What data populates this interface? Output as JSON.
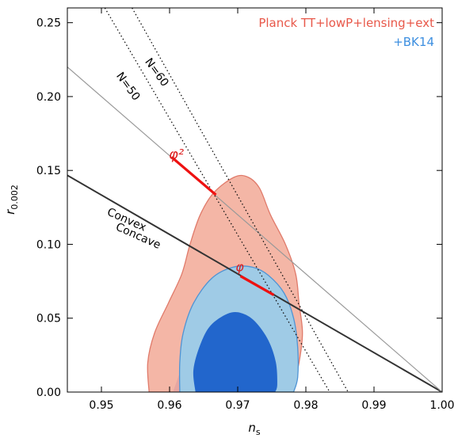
{
  "chart_data": {
    "type": "scatter",
    "xlabel": "n",
    "xlabel_sub": "s",
    "ylabel": "r",
    "ylabel_sub": "0.002",
    "xlim": [
      0.945,
      1.0
    ],
    "ylim": [
      0.0,
      0.26
    ],
    "x_ticks": [
      0.95,
      0.96,
      0.97,
      0.98,
      0.99,
      1.0
    ],
    "x_tick_labels": [
      "0.95",
      "0.96",
      "0.97",
      "0.98",
      "0.99",
      "1.00"
    ],
    "y_ticks": [
      0.0,
      0.05,
      0.1,
      0.15,
      0.2,
      0.25
    ],
    "y_tick_labels": [
      "0.00",
      "0.05",
      "0.10",
      "0.15",
      "0.20",
      "0.25"
    ],
    "grid": false,
    "legend_placement": "top-right",
    "legend": [
      {
        "label": "Planck TT+lowP+lensing+ext",
        "color": "#e8584a"
      },
      {
        "label": "+BK14",
        "color": "#3d8fe0"
      }
    ],
    "colors": {
      "planck_outer": "#f4b6a6",
      "planck_outer_edge": "#e07a6a",
      "planck_inner": "#e6a6a2",
      "bk_outer": "#9fcbe6",
      "bk_outer_edge": "#4f94d4",
      "bk_inner": "#2266cc",
      "model_line": "#ee1111",
      "convex_line": "#333333",
      "gray_line": "#999999"
    },
    "lines": [
      {
        "name": "convex-concave-boundary",
        "style": "solid",
        "color": "#333333",
        "points": [
          [
            0.945,
            0.1467
          ],
          [
            1.0,
            0.0
          ]
        ]
      },
      {
        "name": "phi2-line",
        "style": "solid",
        "color": "#999999",
        "points": [
          [
            0.945,
            0.22
          ],
          [
            1.0,
            0.0
          ]
        ]
      },
      {
        "name": "n50-line",
        "style": "dotted",
        "color": "#111111",
        "points": [
          [
            0.9505,
            0.26
          ],
          [
            0.9835,
            0.0
          ]
        ]
      },
      {
        "name": "n60-line",
        "style": "dotted",
        "color": "#111111",
        "points": [
          [
            0.9545,
            0.26
          ],
          [
            0.9862,
            0.0
          ]
        ]
      }
    ],
    "model_segments": [
      {
        "name": "phi2-segment",
        "points": [
          [
            0.9603,
            0.159
          ],
          [
            0.9668,
            0.1335
          ]
        ]
      },
      {
        "name": "phi-segment",
        "points": [
          [
            0.9704,
            0.0785
          ],
          [
            0.9753,
            0.0657
          ]
        ]
      }
    ],
    "contours": [
      {
        "name": "planck-95",
        "fill": "#f4b6a6",
        "edge": "#e07a6a",
        "points": [
          [
            0.957,
            0.0
          ],
          [
            0.9568,
            0.02
          ],
          [
            0.9578,
            0.04
          ],
          [
            0.9598,
            0.06
          ],
          [
            0.9618,
            0.08
          ],
          [
            0.963,
            0.1
          ],
          [
            0.9645,
            0.12
          ],
          [
            0.9665,
            0.135
          ],
          [
            0.9695,
            0.1455
          ],
          [
            0.9715,
            0.1455
          ],
          [
            0.9732,
            0.138
          ],
          [
            0.9748,
            0.12
          ],
          [
            0.977,
            0.1
          ],
          [
            0.9785,
            0.08
          ],
          [
            0.979,
            0.06
          ],
          [
            0.9795,
            0.04
          ],
          [
            0.979,
            0.02
          ],
          [
            0.978,
            0.0
          ]
        ]
      },
      {
        "name": "planck-68",
        "fill": "#e6a6a2",
        "edge": null,
        "points": [
          [
            0.9605,
            0.0
          ],
          [
            0.9628,
            0.03
          ],
          [
            0.965,
            0.058
          ],
          [
            0.9675,
            0.075
          ],
          [
            0.9705,
            0.08
          ],
          [
            0.9722,
            0.076
          ],
          [
            0.9735,
            0.06
          ],
          [
            0.974,
            0.03
          ],
          [
            0.9738,
            0.0
          ]
        ]
      },
      {
        "name": "bk14-95",
        "fill": "#9fcbe6",
        "edge": "#4f94d4",
        "points": [
          [
            0.9615,
            0.0
          ],
          [
            0.9615,
            0.02
          ],
          [
            0.962,
            0.04
          ],
          [
            0.9635,
            0.06
          ],
          [
            0.9662,
            0.077
          ],
          [
            0.9693,
            0.0845
          ],
          [
            0.9722,
            0.0845
          ],
          [
            0.9745,
            0.079
          ],
          [
            0.9768,
            0.067
          ],
          [
            0.9782,
            0.05
          ],
          [
            0.9788,
            0.03
          ],
          [
            0.9788,
            0.01
          ],
          [
            0.9782,
            0.0
          ]
        ]
      },
      {
        "name": "bk14-68",
        "fill": "#2266cc",
        "edge": null,
        "points": [
          [
            0.9638,
            0.0
          ],
          [
            0.9635,
            0.015
          ],
          [
            0.9645,
            0.032
          ],
          [
            0.966,
            0.045
          ],
          [
            0.9685,
            0.053
          ],
          [
            0.9705,
            0.0535
          ],
          [
            0.9725,
            0.048
          ],
          [
            0.9745,
            0.035
          ],
          [
            0.9756,
            0.02
          ],
          [
            0.9758,
            0.005
          ],
          [
            0.9755,
            0.0
          ]
        ]
      }
    ],
    "annotations": [
      {
        "name": "label-n60",
        "text": "N=60",
        "x": 0.9577,
        "y": 0.215,
        "angle": 54,
        "color": "#000000",
        "size": 14
      },
      {
        "name": "label-n50",
        "text": "N=50",
        "x": 0.9535,
        "y": 0.2055,
        "angle": 54,
        "color": "#000000",
        "size": 14
      },
      {
        "name": "label-convex",
        "text": "Convex",
        "x": 0.9535,
        "y": 0.1145,
        "angle": 24,
        "color": "#000000",
        "size": 14
      },
      {
        "name": "label-concave",
        "text": "Concave",
        "x": 0.9552,
        "y": 0.1035,
        "angle": 24,
        "color": "#000000",
        "size": 14
      },
      {
        "name": "label-phi2",
        "text": "φ²",
        "x": 0.961,
        "y": 0.1575,
        "angle": 0,
        "color": "#dd2222",
        "size": 18
      },
      {
        "name": "label-phi",
        "text": "φ",
        "x": 0.9703,
        "y": 0.0818,
        "angle": 0,
        "color": "#dd2222",
        "size": 16
      }
    ]
  }
}
